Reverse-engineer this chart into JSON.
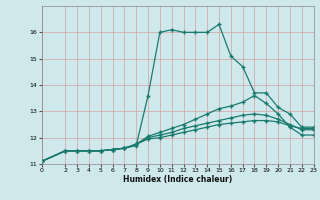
{
  "xlabel": "Humidex (Indice chaleur)",
  "bg_color": "#cfe8ec",
  "line_color": "#1a7a6e",
  "grid_color": "#e8b0b0",
  "xlim": [
    0,
    23
  ],
  "ylim": [
    11,
    17
  ],
  "yticks": [
    11,
    12,
    13,
    14,
    15,
    16
  ],
  "xticks": [
    0,
    2,
    3,
    4,
    5,
    6,
    7,
    8,
    9,
    10,
    11,
    12,
    13,
    14,
    15,
    16,
    17,
    18,
    19,
    20,
    21,
    22,
    23
  ],
  "curve1_x": [
    0,
    2,
    3,
    4,
    5,
    6,
    7,
    8,
    9,
    10,
    11,
    12,
    13,
    14,
    15,
    16,
    17,
    18,
    19,
    20,
    21,
    22,
    23
  ],
  "curve1_y": [
    11.1,
    11.5,
    11.5,
    11.5,
    11.5,
    11.55,
    11.6,
    11.7,
    13.6,
    16.0,
    16.1,
    16.0,
    16.0,
    16.0,
    16.3,
    15.1,
    14.7,
    13.7,
    13.7,
    13.15,
    12.9,
    12.4,
    12.4
  ],
  "curve2_x": [
    0,
    2,
    3,
    4,
    5,
    6,
    7,
    8,
    9,
    10,
    11,
    12,
    13,
    14,
    15,
    16,
    17,
    18,
    19,
    20,
    21,
    22,
    23
  ],
  "curve2_y": [
    11.1,
    11.5,
    11.5,
    11.5,
    11.5,
    11.55,
    11.6,
    11.75,
    12.05,
    12.2,
    12.35,
    12.5,
    12.7,
    12.9,
    13.1,
    13.2,
    13.35,
    13.6,
    13.3,
    12.9,
    12.4,
    12.1,
    12.1
  ],
  "curve3_x": [
    0,
    2,
    3,
    4,
    5,
    6,
    7,
    8,
    9,
    10,
    11,
    12,
    13,
    14,
    15,
    16,
    17,
    18,
    19,
    20,
    21,
    22,
    23
  ],
  "curve3_y": [
    11.1,
    11.5,
    11.5,
    11.5,
    11.5,
    11.55,
    11.6,
    11.75,
    12.0,
    12.1,
    12.2,
    12.35,
    12.45,
    12.55,
    12.65,
    12.75,
    12.85,
    12.9,
    12.85,
    12.7,
    12.5,
    12.3,
    12.3
  ],
  "curve4_x": [
    0,
    2,
    3,
    4,
    5,
    6,
    7,
    8,
    9,
    10,
    11,
    12,
    13,
    14,
    15,
    16,
    17,
    18,
    19,
    20,
    21,
    22,
    23
  ],
  "curve4_y": [
    11.1,
    11.5,
    11.5,
    11.5,
    11.5,
    11.55,
    11.6,
    11.75,
    11.95,
    12.0,
    12.1,
    12.2,
    12.3,
    12.4,
    12.5,
    12.55,
    12.6,
    12.65,
    12.65,
    12.6,
    12.45,
    12.35,
    12.35
  ]
}
